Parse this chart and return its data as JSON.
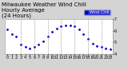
{
  "title": "Milwaukee Weather Wind Chill\nHourly Average\n(24 Hours)",
  "hours": [
    0,
    1,
    2,
    3,
    4,
    5,
    6,
    7,
    8,
    9,
    10,
    11,
    12,
    13,
    14,
    15,
    16,
    17,
    18,
    19,
    20,
    21,
    22,
    23
  ],
  "wind_chill": [
    6.1,
    5.7,
    5.5,
    4.8,
    4.6,
    4.5,
    4.6,
    4.8,
    5.1,
    5.5,
    5.9,
    6.2,
    6.4,
    6.5,
    6.5,
    6.4,
    6.1,
    5.7,
    5.3,
    4.9,
    4.7,
    4.6,
    4.5,
    4.4
  ],
  "ylim": [
    4.0,
    7.0
  ],
  "xlim": [
    -0.5,
    23.5
  ],
  "bg_color": "#d4d4d4",
  "plot_bg_color": "#ffffff",
  "line_color": "#0000cc",
  "grid_color": "#888888",
  "text_color": "#000000",
  "title_fontsize": 5,
  "tick_fontsize": 3.5,
  "marker": ".",
  "markersize": 2,
  "figsize": [
    1.6,
    0.87
  ],
  "dpi": 100,
  "legend_text": "Wind Chill",
  "legend_bg": "#0000dd",
  "legend_text_color": "#ffffff",
  "yticks": [
    4,
    5,
    6,
    7
  ],
  "ytick_labels": [
    "4",
    "5",
    "6",
    "7"
  ],
  "grid_hours": [
    3,
    6,
    9,
    12,
    15,
    18,
    21
  ]
}
